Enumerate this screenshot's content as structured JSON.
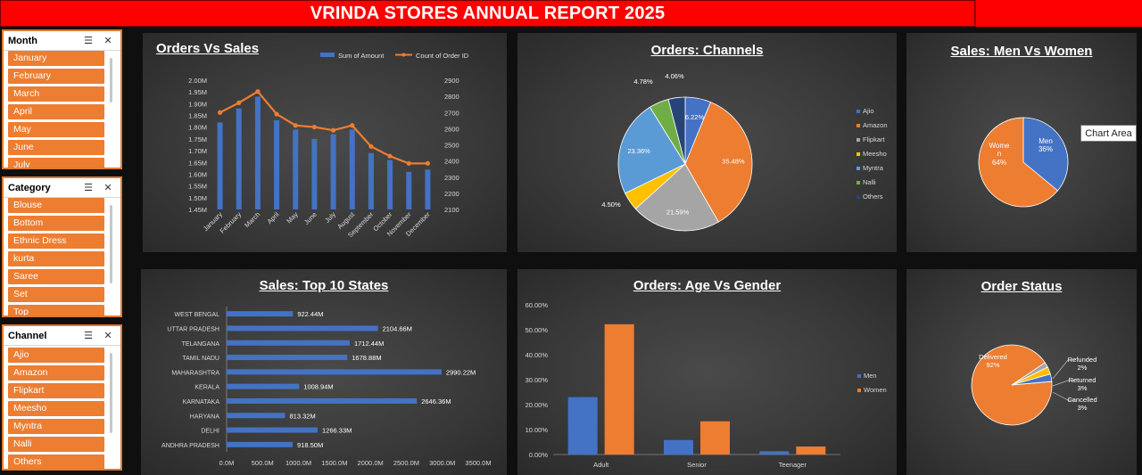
{
  "banner": {
    "title": "VRINDA STORES ANNUAL REPORT 2025"
  },
  "slicers": {
    "month": {
      "title": "Month",
      "items": [
        "January",
        "February",
        "March",
        "April",
        "May",
        "June",
        "July"
      ]
    },
    "category": {
      "title": "Category",
      "items": [
        "Blouse",
        "Bottom",
        "Ethnic Dress",
        "kurta",
        "Saree",
        "Set",
        "Top"
      ]
    },
    "channel": {
      "title": "Channel",
      "items": [
        "Ajio",
        "Amazon",
        "Flipkart",
        "Meesho",
        "Myntra",
        "Nalli",
        "Others"
      ]
    }
  },
  "tooltip": {
    "text": "Chart Area"
  },
  "colors": {
    "orange": "#ed7d31",
    "blue": "#4472c4",
    "banner": "#ff0000"
  },
  "chart_data": [
    {
      "id": "orders-vs-sales",
      "type": "bar-line combo",
      "title": "Orders Vs Sales",
      "categories": [
        "January",
        "February",
        "March",
        "April",
        "May",
        "June",
        "July",
        "August",
        "September",
        "October",
        "November",
        "December"
      ],
      "series": [
        {
          "name": "Sum of Amount",
          "axis": "left",
          "kind": "bar",
          "values": [
            1.82,
            1.88,
            1.93,
            1.83,
            1.79,
            1.75,
            1.77,
            1.79,
            1.69,
            1.66,
            1.61,
            1.62
          ]
        },
        {
          "name": "Count of Order ID",
          "axis": "right",
          "kind": "line",
          "values": [
            2700,
            2760,
            2830,
            2690,
            2620,
            2610,
            2590,
            2620,
            2490,
            2430,
            2385,
            2385
          ]
        }
      ],
      "left_axis": {
        "min": 1.45,
        "max": 2.0,
        "step": 0.05,
        "ticks": [
          "1.45M",
          "1.50M",
          "1.55M",
          "1.60M",
          "1.65M",
          "1.70M",
          "1.75M",
          "1.80M",
          "1.85M",
          "1.90M",
          "1.95M",
          "2.00M"
        ]
      },
      "right_axis": {
        "min": 2100,
        "max": 2900,
        "step": 100,
        "ticks": [
          "2100",
          "2200",
          "2300",
          "2400",
          "2500",
          "2600",
          "2700",
          "2800",
          "2900"
        ]
      },
      "legend": "top"
    },
    {
      "id": "orders-channels",
      "type": "pie",
      "title": "Orders: Channels",
      "slices": [
        {
          "name": "Ajio",
          "value": 6.22,
          "label": "6.22%",
          "color": "#4472c4"
        },
        {
          "name": "Amazon",
          "value": 35.48,
          "label": "35.48%",
          "color": "#ed7d31"
        },
        {
          "name": "Flipkart",
          "value": 21.59,
          "label": "21.59%",
          "color": "#a5a5a5"
        },
        {
          "name": "Meesho",
          "value": 4.5,
          "label": "4.50%",
          "color": "#ffc000"
        },
        {
          "name": "Myntra",
          "value": 23.36,
          "label": "23.36%",
          "color": "#5b9bd5"
        },
        {
          "name": "Nalli",
          "value": 4.78,
          "label": "4.78%",
          "color": "#70ad47"
        },
        {
          "name": "Others",
          "value": 4.06,
          "label": "4.06%",
          "color": "#264478"
        }
      ],
      "legend": "right"
    },
    {
      "id": "sales-men-women",
      "type": "pie",
      "title": "Sales: Men Vs Women",
      "slices": [
        {
          "name": "Men",
          "value": 36,
          "label": "36%",
          "color": "#4472c4"
        },
        {
          "name": "Women",
          "value": 64,
          "label": "64%",
          "color": "#ed7d31"
        }
      ],
      "legend": "none"
    },
    {
      "id": "sales-top-10-states",
      "type": "bar",
      "orientation": "horizontal",
      "title": "Sales: Top 10 States",
      "categories": [
        "WEST BENGAL",
        "UTTAR PRADESH",
        "TELANGANA",
        "TAMIL NADU",
        "MAHARASHTRA",
        "KERALA",
        "KARNATAKA",
        "HARYANA",
        "DELHI",
        "ANDHRA PRADESH"
      ],
      "values": [
        922.44,
        2104.66,
        1712.44,
        1678.88,
        2990.22,
        1008.94,
        2646.36,
        813.32,
        1266.33,
        918.5
      ],
      "labels": [
        "922.44M",
        "2104.66M",
        "1712.44M",
        "1678.88M",
        "2990.22M",
        "1008.94M",
        "2646.36M",
        "813.32M",
        "1266.33M",
        "918.50M"
      ],
      "x_axis": {
        "min": 0,
        "max": 3500,
        "step": 500,
        "ticks": [
          "0.0M",
          "500.0M",
          "1000.0M",
          "1500.0M",
          "2000.0M",
          "2500.0M",
          "3000.0M",
          "3500.0M"
        ]
      }
    },
    {
      "id": "orders-age-gender",
      "type": "bar",
      "title": "Orders: Age Vs Gender",
      "categories": [
        "Adult",
        "Senior",
        "Teenager"
      ],
      "series": [
        {
          "name": "Men",
          "values": [
            23.0,
            5.8,
            1.3
          ],
          "color": "#4472c4"
        },
        {
          "name": "Women",
          "values": [
            52.2,
            13.3,
            3.2
          ],
          "color": "#ed7d31"
        }
      ],
      "y_axis": {
        "min": 0,
        "max": 60,
        "step": 10,
        "ticks": [
          "0.00%",
          "10.00%",
          "20.00%",
          "30.00%",
          "40.00%",
          "50.00%",
          "60.00%"
        ]
      },
      "legend": "right"
    },
    {
      "id": "order-status",
      "type": "pie",
      "title": "Order Status",
      "slices": [
        {
          "name": "Delivered",
          "value": 92,
          "label": "92%",
          "color": "#ed7d31"
        },
        {
          "name": "Refunded",
          "value": 2,
          "label": "2%",
          "color": "#a5a5a5"
        },
        {
          "name": "Returned",
          "value": 3,
          "label": "3%",
          "color": "#ffc000"
        },
        {
          "name": "Cancelled",
          "value": 3,
          "label": "3%",
          "color": "#4472c4"
        }
      ],
      "legend": "none"
    }
  ]
}
